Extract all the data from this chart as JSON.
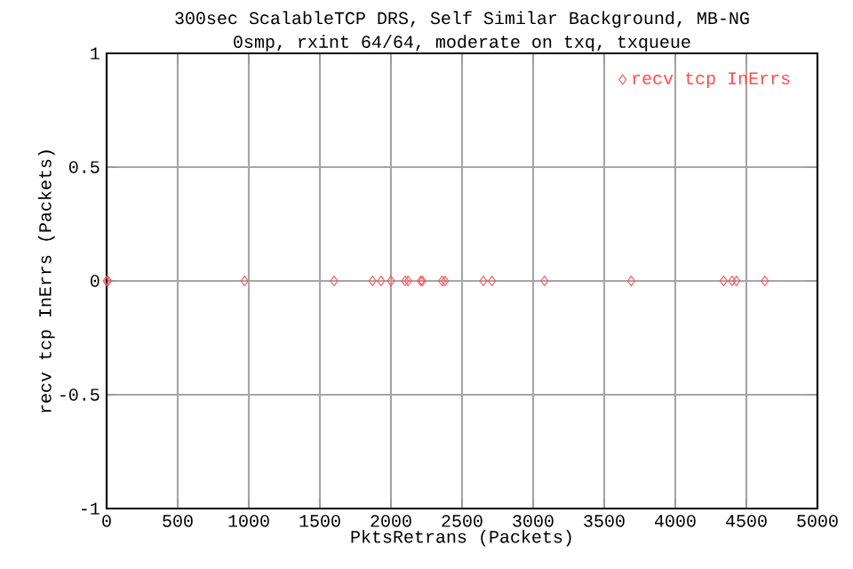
{
  "chart_data": {
    "type": "scatter",
    "title": "300sec ScalableTCP DRS, Self Similar Background, MB-NG",
    "subtitle": "0smp, rxint 64/64, moderate on txq, txqueue",
    "xlabel": "PktsRetrans (Packets)",
    "ylabel": "recv tcp InErrs (Packets)",
    "series": [
      {
        "name": "recv tcp InErrs",
        "color": "#ff5050",
        "x": [
          0,
          10,
          970,
          1600,
          1870,
          1930,
          2000,
          2100,
          2120,
          2210,
          2220,
          2360,
          2380,
          2650,
          2710,
          3080,
          3690,
          4340,
          4400,
          4430,
          4630
        ],
        "values": [
          0,
          0,
          0,
          0,
          0,
          0,
          0,
          0,
          0,
          0,
          0,
          0,
          0,
          0,
          0,
          0,
          0,
          0,
          0,
          0,
          0
        ]
      }
    ],
    "xlim": [
      0,
      5000
    ],
    "ylim": [
      -1,
      1
    ],
    "xticks": [
      0,
      500,
      1000,
      1500,
      2000,
      2500,
      3000,
      3500,
      4000,
      4500,
      5000
    ],
    "yticks": [
      -1,
      -0.5,
      0,
      0.5,
      1
    ],
    "grid": true,
    "legend": "top right",
    "marker": "diamond"
  }
}
